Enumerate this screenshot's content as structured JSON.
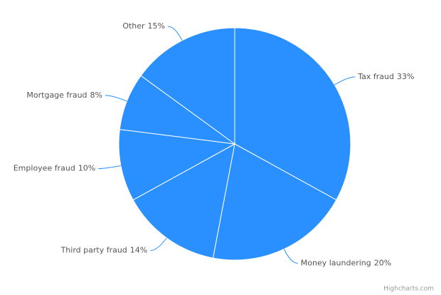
{
  "chart_data": {
    "type": "pie",
    "categories": [
      "Tax fraud",
      "Money laundering",
      "Third party fraud",
      "Employee fraud",
      "Mortgage fraud",
      "Other"
    ],
    "values": [
      33,
      20,
      14,
      10,
      8,
      15
    ],
    "value_labels": [
      "33%",
      "20%",
      "14%",
      "10%",
      "8%",
      "15%"
    ],
    "color": "#2b90ff",
    "credits": "Highcharts.com"
  }
}
